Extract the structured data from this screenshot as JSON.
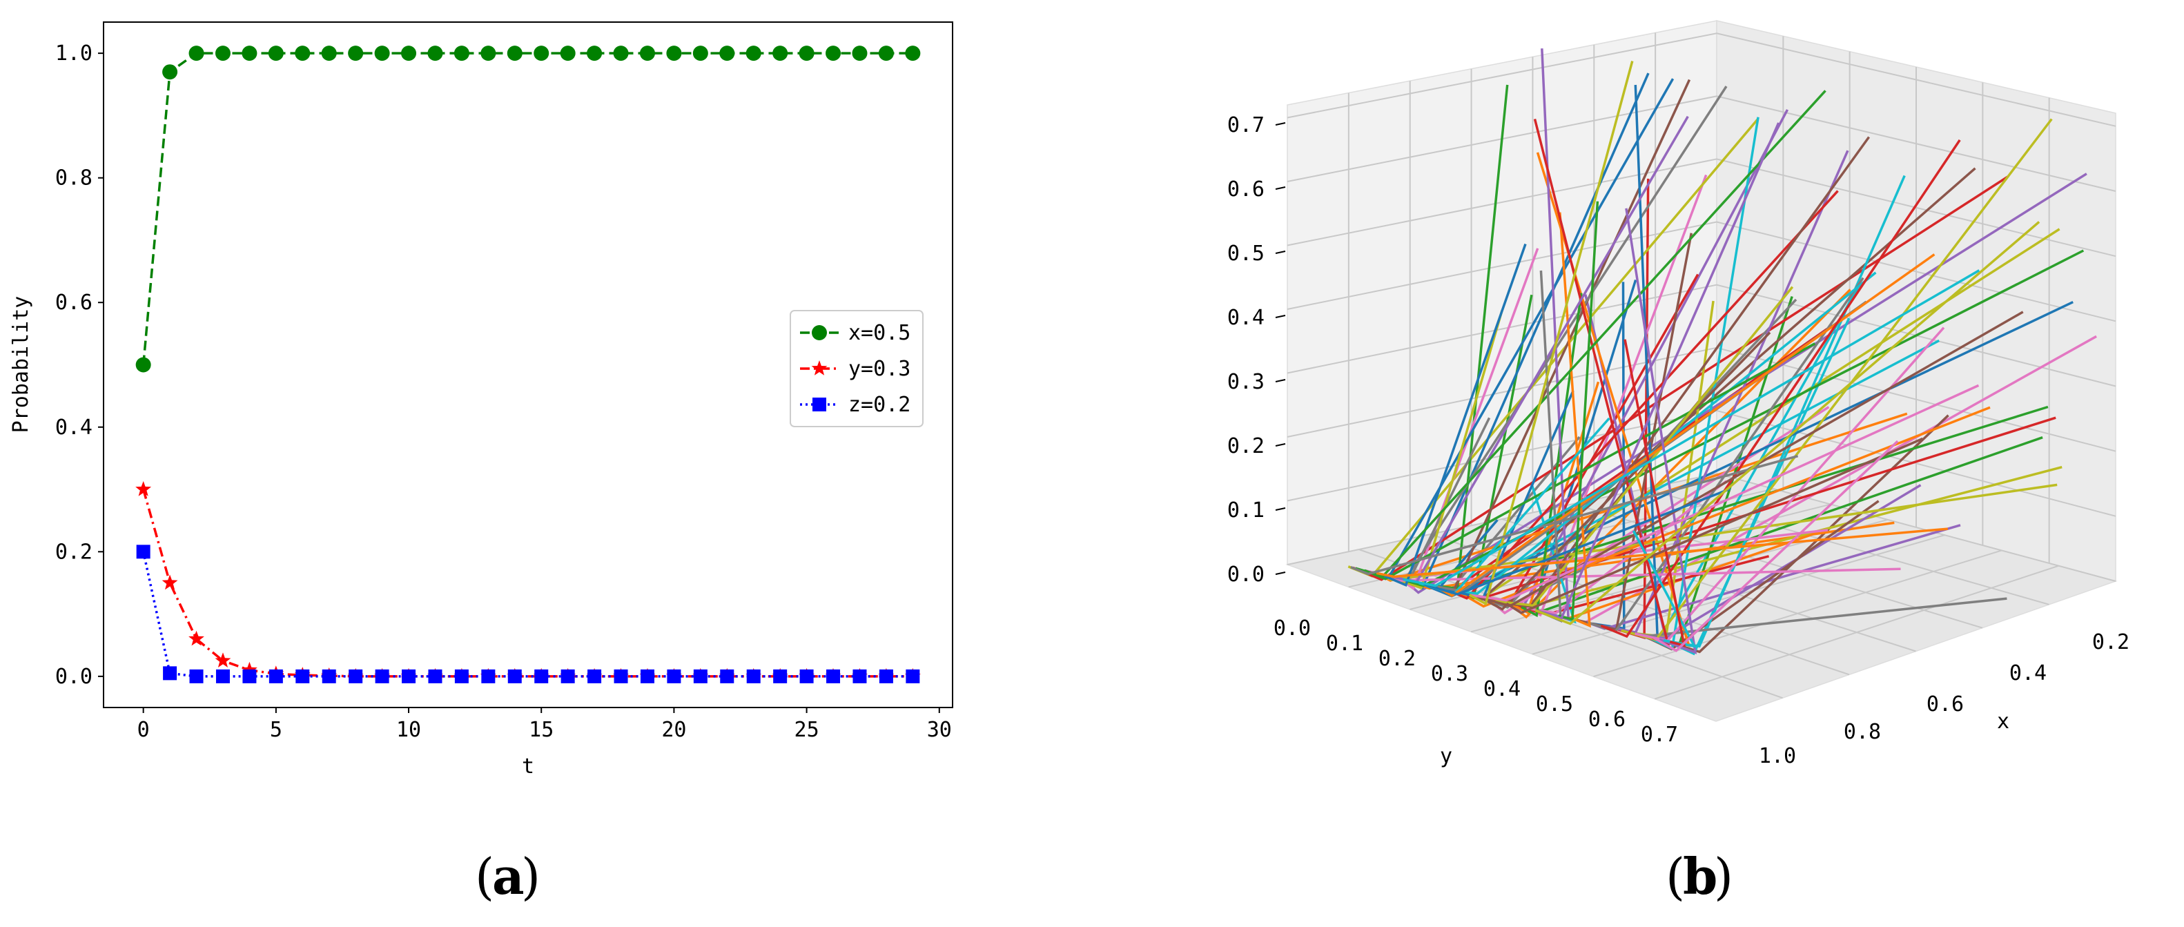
{
  "captions": {
    "a": "a",
    "b": "b"
  },
  "chart_data": [
    {
      "type": "line",
      "xlabel": "t",
      "ylabel": "Probability",
      "xlim": [
        -1.5,
        30.5
      ],
      "ylim": [
        -0.05,
        1.05
      ],
      "x_ticks": [
        "0",
        "5",
        "10",
        "15",
        "20",
        "25",
        "30"
      ],
      "y_ticks": [
        "0.0",
        "0.2",
        "0.4",
        "0.6",
        "0.8",
        "1.0"
      ],
      "grid": false,
      "legend_position": "center-right",
      "x": [
        0,
        1,
        2,
        3,
        4,
        5,
        6,
        7,
        8,
        9,
        10,
        11,
        12,
        13,
        14,
        15,
        16,
        17,
        18,
        19,
        20,
        21,
        22,
        23,
        24,
        25,
        26,
        27,
        28,
        29
      ],
      "series": [
        {
          "name": "x=0.5",
          "color": "#008000",
          "marker": "circle",
          "linestyle": "dashed",
          "values": [
            0.5,
            0.97,
            1,
            1,
            1,
            1,
            1,
            1,
            1,
            1,
            1,
            1,
            1,
            1,
            1,
            1,
            1,
            1,
            1,
            1,
            1,
            1,
            1,
            1,
            1,
            1,
            1,
            1,
            1,
            1
          ]
        },
        {
          "name": "y=0.3",
          "color": "#ff0000",
          "marker": "star",
          "linestyle": "dashdot",
          "values": [
            0.3,
            0.15,
            0.06,
            0.025,
            0.01,
            0.004,
            0.002,
            0.001,
            0,
            0,
            0,
            0,
            0,
            0,
            0,
            0,
            0,
            0,
            0,
            0,
            0,
            0,
            0,
            0,
            0,
            0,
            0,
            0,
            0,
            0
          ]
        },
        {
          "name": "z=0.2",
          "color": "#0000ff",
          "marker": "square",
          "linestyle": "dotted",
          "values": [
            0.2,
            0.005,
            0,
            0,
            0,
            0,
            0,
            0,
            0,
            0,
            0,
            0,
            0,
            0,
            0,
            0,
            0,
            0,
            0,
            0,
            0,
            0,
            0,
            0,
            0,
            0,
            0,
            0,
            0,
            0
          ]
        }
      ]
    },
    {
      "type": "line3d",
      "xlabel": "x",
      "ylabel": "y",
      "zlabel": "",
      "x_ticks": [
        "0.2",
        "0.4",
        "0.6",
        "0.8",
        "1.0"
      ],
      "y_ticks": [
        "0.0",
        "0.1",
        "0.2",
        "0.3",
        "0.4",
        "0.5",
        "0.6",
        "0.7"
      ],
      "z_ticks": [
        "0.0",
        "0.1",
        "0.2",
        "0.3",
        "0.4",
        "0.5",
        "0.6",
        "0.7"
      ],
      "grid": true,
      "description_lines": 100,
      "palette": [
        "#1f77b4",
        "#ff7f0e",
        "#2ca02c",
        "#d62728",
        "#9467bd",
        "#8c564b",
        "#e377c2",
        "#7f7f7f",
        "#bcbd22",
        "#17becf"
      ]
    }
  ]
}
